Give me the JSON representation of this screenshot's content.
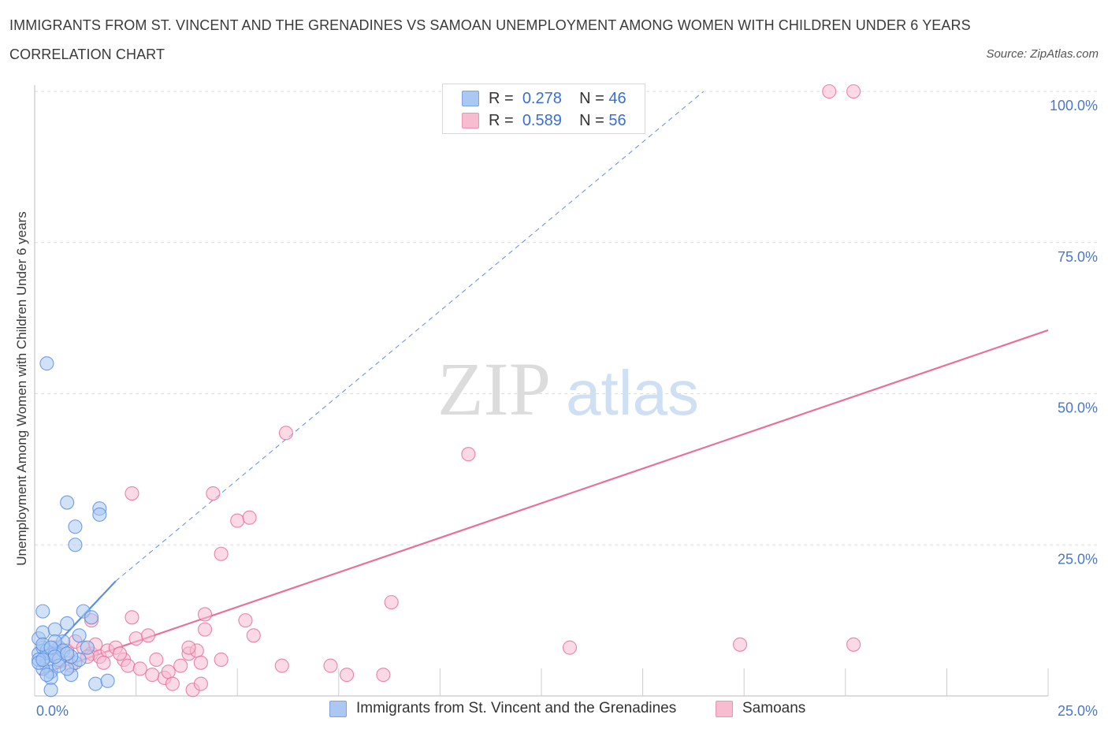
{
  "title": "IMMIGRANTS FROM ST. VINCENT AND THE GRENADINES VS SAMOAN UNEMPLOYMENT AMONG WOMEN WITH CHILDREN UNDER 6 YEARS CORRELATION CHART",
  "source": "Source: ZipAtlas.com",
  "watermark": {
    "zip": "ZIP",
    "atlas": "atlas"
  },
  "legend": {
    "rows": [
      {
        "r_label": "R =",
        "r_value": "0.278",
        "n_label": "N =",
        "n_value": "46",
        "color": "#aac8f2"
      },
      {
        "r_label": "R =",
        "r_value": "0.589",
        "n_label": "N =",
        "n_value": "56",
        "color": "#f7bcd0"
      }
    ]
  },
  "bottom_legend": [
    {
      "label": "Immigrants from St. Vincent and the Grenadines",
      "color": "#aac8f2"
    },
    {
      "label": "Samoans",
      "color": "#f7bcd0"
    }
  ],
  "chart_data": {
    "type": "scatter",
    "xlabel": "",
    "ylabel": "Unemployment Among Women with Children Under 6 years",
    "xlim": [
      0,
      25
    ],
    "ylim": [
      0,
      100
    ],
    "x_tick_labels": [
      "0.0%",
      "25.0%"
    ],
    "y_tick_labels": [
      "25.0%",
      "50.0%",
      "75.0%",
      "100.0%"
    ],
    "y_ticks": [
      25,
      50,
      75,
      100
    ],
    "grid": true,
    "legend_position": "top-center",
    "series": [
      {
        "name": "Immigrants from St. Vincent and the Grenadines",
        "color": "#5b8fe0",
        "fill": "#aac8f2",
        "trend": {
          "x": [
            0.1,
            2.0
          ],
          "y": [
            5.5,
            19.0
          ],
          "style": "solid"
        },
        "trend_ext": {
          "x": [
            2.0,
            16.5
          ],
          "y": [
            19.0,
            100.0
          ],
          "style": "dashed"
        },
        "points": [
          [
            0.1,
            7.0
          ],
          [
            0.2,
            8.0
          ],
          [
            0.3,
            6.5
          ],
          [
            0.1,
            9.5
          ],
          [
            0.2,
            10.5
          ],
          [
            0.3,
            5.0
          ],
          [
            0.4,
            4.0
          ],
          [
            0.2,
            14.0
          ],
          [
            0.5,
            11.0
          ],
          [
            0.6,
            8.0
          ],
          [
            0.7,
            9.0
          ],
          [
            0.8,
            12.0
          ],
          [
            0.4,
            3.0
          ],
          [
            0.9,
            3.5
          ],
          [
            1.0,
            5.5
          ],
          [
            1.1,
            6.0
          ],
          [
            0.3,
            7.5
          ],
          [
            0.5,
            7.0
          ],
          [
            0.6,
            6.0
          ],
          [
            0.8,
            4.5
          ],
          [
            1.2,
            14.0
          ],
          [
            1.4,
            13.0
          ],
          [
            0.3,
            55.0
          ],
          [
            0.8,
            32.0
          ],
          [
            1.0,
            28.0
          ],
          [
            1.0,
            25.0
          ],
          [
            1.6,
            31.0
          ],
          [
            1.6,
            30.0
          ],
          [
            1.5,
            2.0
          ],
          [
            1.8,
            2.5
          ],
          [
            0.4,
            1.0
          ],
          [
            0.2,
            4.5
          ],
          [
            0.1,
            6.0
          ],
          [
            0.5,
            9.0
          ],
          [
            0.7,
            7.5
          ],
          [
            0.9,
            6.5
          ],
          [
            1.3,
            8.0
          ],
          [
            0.2,
            8.5
          ],
          [
            0.6,
            5.0
          ],
          [
            0.3,
            3.5
          ],
          [
            0.4,
            8.0
          ],
          [
            0.1,
            5.5
          ],
          [
            0.5,
            6.5
          ],
          [
            0.8,
            7.0
          ],
          [
            1.1,
            10.0
          ],
          [
            0.2,
            6.0
          ]
        ]
      },
      {
        "name": "Samoans",
        "color": "#e8709a",
        "fill": "#f7bcd0",
        "trend": {
          "x": [
            0.1,
            25.0
          ],
          "y": [
            3.5,
            60.5
          ],
          "style": "solid"
        },
        "points": [
          [
            0.3,
            7.0
          ],
          [
            0.5,
            8.0
          ],
          [
            0.8,
            7.5
          ],
          [
            1.0,
            9.0
          ],
          [
            1.2,
            8.0
          ],
          [
            1.4,
            7.0
          ],
          [
            1.5,
            8.5
          ],
          [
            1.6,
            6.5
          ],
          [
            1.8,
            7.5
          ],
          [
            2.0,
            8.0
          ],
          [
            2.2,
            6.0
          ],
          [
            2.3,
            5.0
          ],
          [
            2.5,
            9.5
          ],
          [
            2.6,
            4.5
          ],
          [
            2.8,
            10.0
          ],
          [
            3.0,
            6.0
          ],
          [
            3.2,
            3.0
          ],
          [
            3.3,
            4.0
          ],
          [
            3.4,
            2.0
          ],
          [
            3.6,
            5.0
          ],
          [
            3.8,
            7.0
          ],
          [
            4.0,
            7.5
          ],
          [
            4.1,
            5.5
          ],
          [
            4.2,
            13.5
          ],
          [
            4.2,
            11.0
          ],
          [
            5.2,
            12.5
          ],
          [
            5.4,
            10.0
          ],
          [
            6.1,
            5.0
          ],
          [
            7.3,
            5.0
          ],
          [
            7.7,
            3.5
          ],
          [
            8.6,
            3.5
          ],
          [
            8.8,
            15.5
          ],
          [
            13.2,
            8.0
          ],
          [
            17.4,
            8.5
          ],
          [
            20.2,
            8.5
          ],
          [
            2.4,
            33.5
          ],
          [
            4.4,
            33.5
          ],
          [
            5.0,
            29.0
          ],
          [
            5.3,
            29.5
          ],
          [
            4.6,
            23.5
          ],
          [
            6.2,
            43.5
          ],
          [
            10.7,
            40.0
          ],
          [
            19.6,
            100.0
          ],
          [
            20.2,
            100.0
          ],
          [
            1.4,
            12.5
          ],
          [
            2.4,
            13.0
          ],
          [
            3.8,
            8.0
          ],
          [
            0.6,
            6.0
          ],
          [
            1.7,
            5.5
          ],
          [
            2.9,
            3.5
          ],
          [
            3.9,
            1.0
          ],
          [
            4.1,
            2.0
          ],
          [
            1.3,
            6.5
          ],
          [
            0.9,
            5.0
          ],
          [
            2.1,
            7.0
          ],
          [
            4.6,
            6.0
          ]
        ]
      }
    ]
  }
}
